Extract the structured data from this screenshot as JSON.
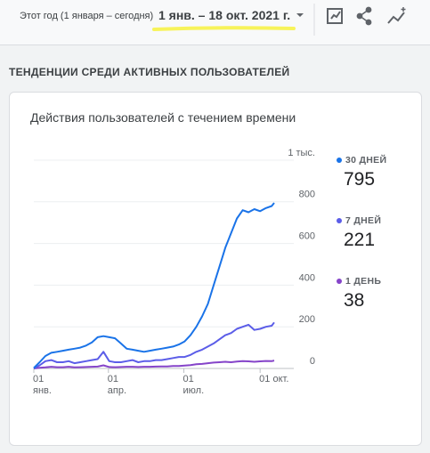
{
  "header": {
    "period_label": "Этот год (1 января – сегодня)",
    "date_range": "1 янв. – 18 окт. 2021 г."
  },
  "section_title": "ТЕНДЕНЦИИ СРЕДИ АКТИВНЫХ ПОЛЬЗОВАТЕЛЕЙ",
  "chart_data": {
    "type": "line",
    "title": "Действия пользователей с течением времени",
    "x": [
      "2021-01-01",
      "2021-01-08",
      "2021-01-15",
      "2021-01-22",
      "2021-01-29",
      "2021-02-05",
      "2021-02-12",
      "2021-02-19",
      "2021-02-26",
      "2021-03-05",
      "2021-03-12",
      "2021-03-19",
      "2021-03-26",
      "2021-04-02",
      "2021-04-09",
      "2021-04-16",
      "2021-04-23",
      "2021-04-30",
      "2021-05-07",
      "2021-05-14",
      "2021-05-21",
      "2021-05-28",
      "2021-06-04",
      "2021-06-11",
      "2021-06-18",
      "2021-06-25",
      "2021-07-02",
      "2021-07-09",
      "2021-07-16",
      "2021-07-23",
      "2021-07-30",
      "2021-08-06",
      "2021-08-13",
      "2021-08-20",
      "2021-08-27",
      "2021-09-03",
      "2021-09-10",
      "2021-09-17",
      "2021-09-24",
      "2021-10-01",
      "2021-10-08",
      "2021-10-15",
      "2021-10-18"
    ],
    "series": [
      {
        "name": "30 ДНЕЙ",
        "color": "#1a73e8",
        "values": [
          2,
          30,
          60,
          75,
          80,
          85,
          90,
          95,
          100,
          110,
          125,
          150,
          155,
          150,
          145,
          120,
          95,
          90,
          85,
          80,
          85,
          90,
          95,
          100,
          105,
          115,
          130,
          160,
          200,
          250,
          310,
          400,
          490,
          580,
          650,
          720,
          760,
          750,
          765,
          755,
          770,
          780,
          795
        ]
      },
      {
        "name": "7 ДНЕЙ",
        "color": "#5b5de8",
        "values": [
          0,
          15,
          35,
          40,
          30,
          30,
          35,
          25,
          30,
          35,
          40,
          45,
          80,
          35,
          30,
          30,
          35,
          40,
          30,
          35,
          35,
          40,
          40,
          45,
          50,
          55,
          55,
          65,
          80,
          90,
          105,
          120,
          140,
          160,
          170,
          190,
          200,
          210,
          185,
          190,
          200,
          205,
          221
        ]
      },
      {
        "name": "1 ДЕНЬ",
        "color": "#8544c9",
        "values": [
          0,
          3,
          5,
          8,
          6,
          6,
          8,
          5,
          6,
          7,
          8,
          9,
          15,
          7,
          6,
          7,
          8,
          8,
          7,
          8,
          8,
          9,
          10,
          10,
          12,
          12,
          14,
          16,
          20,
          22,
          25,
          28,
          30,
          32,
          30,
          33,
          35,
          34,
          32,
          34,
          36,
          35,
          38
        ]
      }
    ],
    "xlim": [
      "2021-01-01",
      "2021-10-18"
    ],
    "xticks": [
      {
        "value": "2021-01-01",
        "label": "01 янв."
      },
      {
        "value": "2021-04-01",
        "label": "01 апр."
      },
      {
        "value": "2021-07-01",
        "label": "01 июл."
      },
      {
        "value": "2021-10-01",
        "label": "01 окт."
      }
    ],
    "ylim": [
      0,
      1000
    ],
    "yticks": [
      0,
      200,
      400,
      600,
      800,
      {
        "value": 1000,
        "label": "1 тыс."
      }
    ],
    "grid": true
  }
}
